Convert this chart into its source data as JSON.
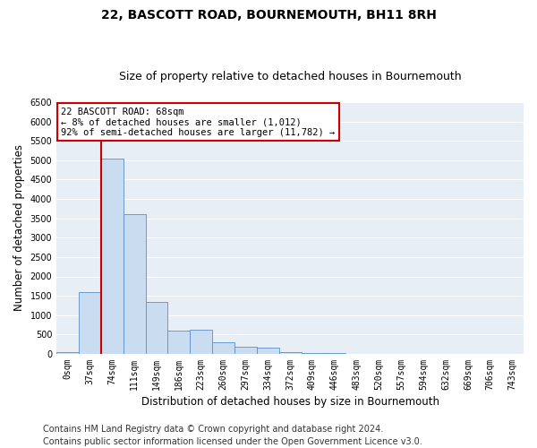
{
  "title": "22, BASCOTT ROAD, BOURNEMOUTH, BH11 8RH",
  "subtitle": "Size of property relative to detached houses in Bournemouth",
  "xlabel": "Distribution of detached houses by size in Bournemouth",
  "ylabel": "Number of detached properties",
  "bin_labels": [
    "0sqm",
    "37sqm",
    "74sqm",
    "111sqm",
    "149sqm",
    "186sqm",
    "223sqm",
    "260sqm",
    "297sqm",
    "334sqm",
    "372sqm",
    "409sqm",
    "446sqm",
    "483sqm",
    "520sqm",
    "557sqm",
    "594sqm",
    "632sqm",
    "669sqm",
    "706sqm",
    "743sqm"
  ],
  "bar_values": [
    50,
    1600,
    5050,
    3600,
    1350,
    600,
    625,
    300,
    175,
    150,
    50,
    20,
    20,
    5,
    5,
    5,
    5,
    5,
    5,
    5,
    5
  ],
  "bar_color": "#c9dcf0",
  "bar_edge_color": "#5b8fc9",
  "highlight_line_color": "#cc0000",
  "highlight_bin_index": 2,
  "annotation_text": "22 BASCOTT ROAD: 68sqm\n← 8% of detached houses are smaller (1,012)\n92% of semi-detached houses are larger (11,782) →",
  "annotation_box_color": "white",
  "annotation_box_edge_color": "#cc0000",
  "ylim": [
    0,
    6500
  ],
  "yticks": [
    0,
    500,
    1000,
    1500,
    2000,
    2500,
    3000,
    3500,
    4000,
    4500,
    5000,
    5500,
    6000,
    6500
  ],
  "footer_line1": "Contains HM Land Registry data © Crown copyright and database right 2024.",
  "footer_line2": "Contains public sector information licensed under the Open Government Licence v3.0.",
  "bg_color": "#e8eef6",
  "grid_color": "white",
  "title_fontsize": 10,
  "subtitle_fontsize": 9,
  "axis_label_fontsize": 8.5,
  "tick_fontsize": 7,
  "annotation_fontsize": 7.5,
  "footer_fontsize": 7
}
